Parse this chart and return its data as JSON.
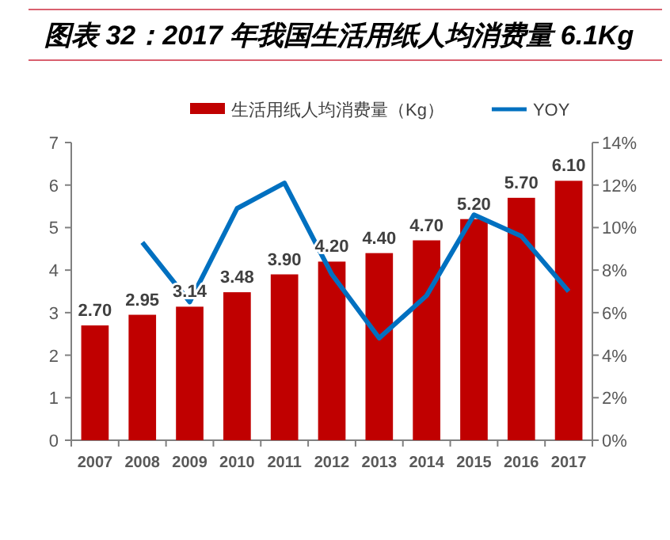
{
  "chart_data": {
    "type": "bar",
    "title": "图表 32：2017 年我国生活用纸人均消费量 6.1Kg",
    "categories": [
      "2007",
      "2008",
      "2009",
      "2010",
      "2011",
      "2012",
      "2013",
      "2014",
      "2015",
      "2016",
      "2017"
    ],
    "series": [
      {
        "name": "生活用纸人均消费量（Kg）",
        "color": "#c00000",
        "values": [
          2.7,
          2.95,
          3.14,
          3.48,
          3.9,
          4.2,
          4.4,
          4.7,
          5.2,
          5.7,
          6.1
        ],
        "value_labels": [
          "2.70",
          "2.95",
          "3.14",
          "3.48",
          "3.90",
          "4.20",
          "4.40",
          "4.70",
          "5.20",
          "5.70",
          "6.10"
        ]
      },
      {
        "name": "YOY",
        "type": "line",
        "axis": "y2",
        "color": "#0070c0",
        "values": [
          null,
          9.3,
          6.5,
          10.9,
          12.1,
          7.8,
          4.8,
          6.8,
          10.6,
          9.6,
          7.0
        ]
      }
    ],
    "ylim": [
      0,
      7
    ],
    "yticks": [
      0,
      1,
      2,
      3,
      4,
      5,
      6,
      7
    ],
    "y2lim": [
      0,
      14
    ],
    "y2ticks": [
      {
        "value": 0,
        "label": "0%"
      },
      {
        "value": 2,
        "label": "2%"
      },
      {
        "value": 4,
        "label": "4%"
      },
      {
        "value": 6,
        "label": "6%"
      },
      {
        "value": 8,
        "label": "8%"
      },
      {
        "value": 10,
        "label": "10%"
      },
      {
        "value": 12,
        "label": "12%"
      },
      {
        "value": 14,
        "label": "14%"
      }
    ],
    "legend": "top",
    "grid": false,
    "marker": "none"
  }
}
